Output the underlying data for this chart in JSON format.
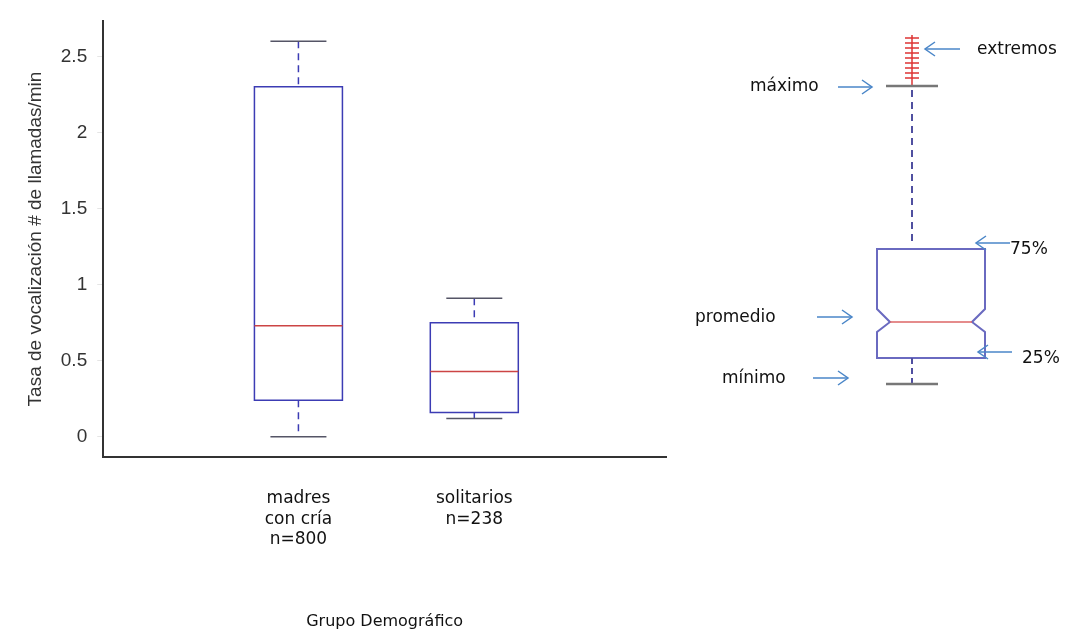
{
  "chart_data": {
    "type": "box",
    "xlabel": "Grupo Demográfico",
    "ylabel": "Tasa de vocalización # de llamadas/min",
    "categories": [
      "madres\ncon cría\nn=800",
      "solitarios\nn=238"
    ],
    "color": "#3c3cb4",
    "boxes": [
      {
        "low": 0,
        "q1": 0.24,
        "median": 0.73,
        "q3": 2.3,
        "high": 2.6
      },
      {
        "low": 0.12,
        "q1": 0.16,
        "median": 0.43,
        "q3": 0.75,
        "high": 0.91
      }
    ],
    "ylim": [
      -0.13,
      2.73
    ],
    "yticks": [
      0,
      0.5,
      1,
      1.5,
      2,
      2.5
    ],
    "grid": false,
    "legend": false,
    "annotations": [
      "extremos",
      "máximo",
      "75%",
      "promedio",
      "25%",
      "mínimo"
    ]
  }
}
